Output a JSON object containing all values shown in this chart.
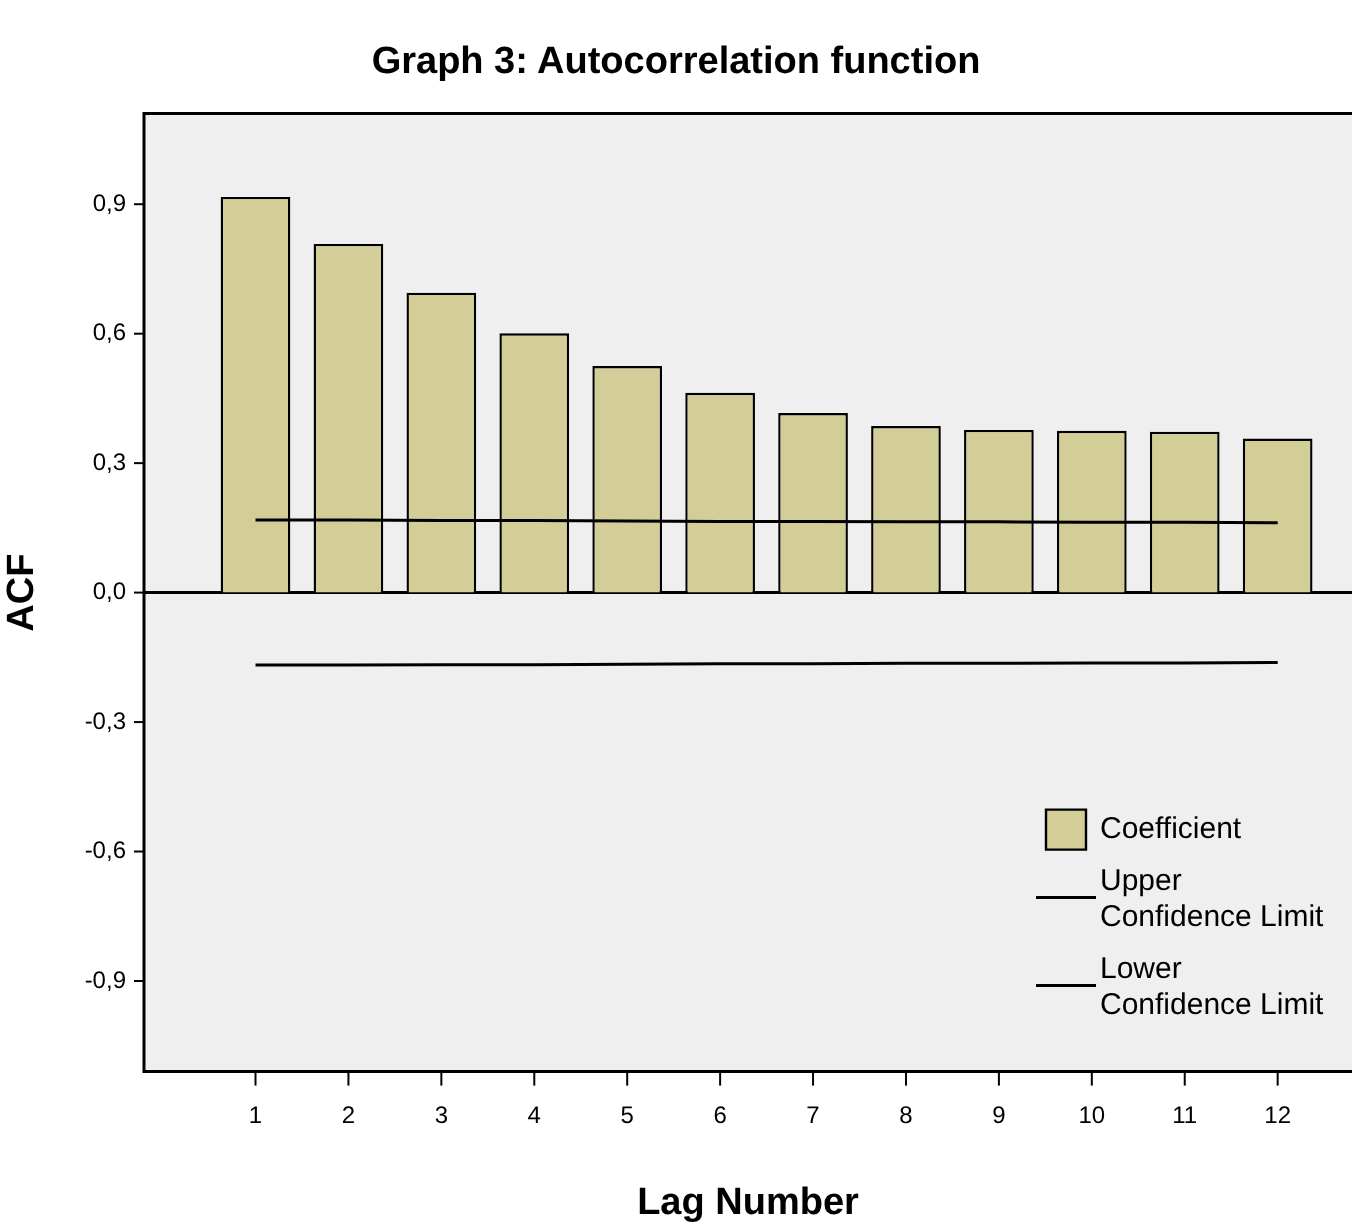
{
  "chart_data": {
    "type": "bar",
    "title": "Graph 3: Autocorrelation function",
    "xlabel": "Lag Number",
    "ylabel": "ACF",
    "x": [
      1,
      2,
      3,
      4,
      5,
      6,
      7,
      8,
      9,
      10,
      11,
      12
    ],
    "xlim": [
      -0.2,
      12.8
    ],
    "xticks": [
      1,
      2,
      3,
      4,
      5,
      6,
      7,
      8,
      9,
      10,
      11,
      12
    ],
    "ylim": [
      -1.11,
      1.11
    ],
    "yticks": [
      {
        "value": -0.9,
        "label": "-0,9"
      },
      {
        "value": -0.6,
        "label": "-0,6"
      },
      {
        "value": -0.3,
        "label": "-0,3"
      },
      {
        "value": 0,
        "label": "0,0"
      },
      {
        "value": 0.3,
        "label": "0,3"
      },
      {
        "value": 0.6,
        "label": "0,6"
      },
      {
        "value": 0.9,
        "label": "0,9"
      }
    ],
    "series": [
      {
        "name": "Coefficient",
        "color": "#d3cd97",
        "values": [
          0.917,
          0.808,
          0.695,
          0.601,
          0.525,
          0.463,
          0.416,
          0.386,
          0.377,
          0.375,
          0.373,
          0.357
        ]
      },
      {
        "name": "Upper Confidence Limit",
        "type": "line",
        "color": "#000000",
        "values": [
          0.168,
          0.168,
          0.167,
          0.167,
          0.166,
          0.165,
          0.165,
          0.164,
          0.164,
          0.163,
          0.163,
          0.162
        ]
      },
      {
        "name": "Lower Confidence Limit",
        "type": "line",
        "color": "#000000",
        "values": [
          -0.168,
          -0.168,
          -0.167,
          -0.167,
          -0.166,
          -0.165,
          -0.165,
          -0.164,
          -0.164,
          -0.163,
          -0.163,
          -0.162
        ]
      }
    ],
    "ref_lines": [
      {
        "axis": "y",
        "value": 0,
        "color": "#000000"
      }
    ],
    "legend": "bottom right",
    "grid": false,
    "marker": "none",
    "line_style": "solid"
  }
}
